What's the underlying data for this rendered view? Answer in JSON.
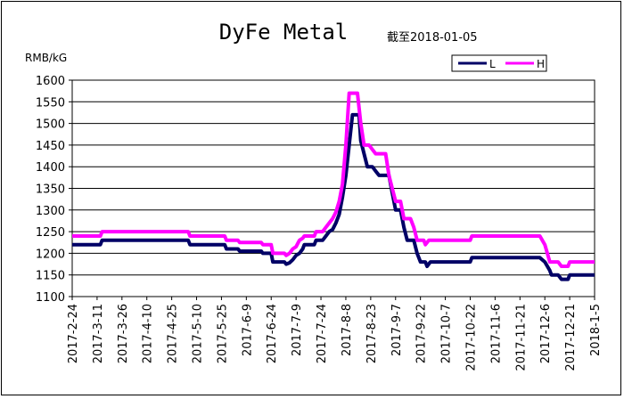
{
  "chart_data": {
    "type": "line",
    "title": "DyFe Metal",
    "subtitle": "截至2018-01-05",
    "ylabel": "RMB/kG",
    "xlabel": "",
    "ylim": [
      1100,
      1600
    ],
    "yticks": [
      1100,
      1150,
      1200,
      1250,
      1300,
      1350,
      1400,
      1450,
      1500,
      1550,
      1600
    ],
    "x_tick_labels": [
      "2017-2-24",
      "2017-3-11",
      "2017-3-26",
      "2017-4-10",
      "2017-4-25",
      "2017-5-10",
      "2017-5-25",
      "2017-6-9",
      "2017-6-24",
      "2017-7-9",
      "2017-7-24",
      "2017-8-8",
      "2017-8-23",
      "2017-9-7",
      "2017-9-22",
      "2017-10-7",
      "2017-10-22",
      "2017-11-6",
      "2017-11-21",
      "2017-12-6",
      "2017-12-21",
      "2018-1-5"
    ],
    "x_start": "2017-2-24",
    "x_end": "2018-1-5",
    "grid": "horizontal",
    "legend_position": "top-right",
    "colors": {
      "L": "#000066",
      "H": "#ff00ff"
    },
    "series": [
      {
        "name": "L",
        "points": [
          [
            "2017-02-24",
            1220
          ],
          [
            "2017-03-13",
            1220
          ],
          [
            "2017-03-14",
            1230
          ],
          [
            "2017-05-05",
            1230
          ],
          [
            "2017-05-06",
            1220
          ],
          [
            "2017-05-27",
            1220
          ],
          [
            "2017-05-28",
            1210
          ],
          [
            "2017-06-04",
            1210
          ],
          [
            "2017-06-05",
            1205
          ],
          [
            "2017-06-18",
            1205
          ],
          [
            "2017-06-19",
            1200
          ],
          [
            "2017-06-24",
            1200
          ],
          [
            "2017-06-25",
            1180
          ],
          [
            "2017-07-02",
            1180
          ],
          [
            "2017-07-03",
            1175
          ],
          [
            "2017-07-05",
            1178
          ],
          [
            "2017-07-07",
            1185
          ],
          [
            "2017-07-09",
            1195
          ],
          [
            "2017-07-11",
            1200
          ],
          [
            "2017-07-13",
            1210
          ],
          [
            "2017-07-14",
            1220
          ],
          [
            "2017-07-20",
            1220
          ],
          [
            "2017-07-21",
            1230
          ],
          [
            "2017-07-25",
            1230
          ],
          [
            "2017-07-27",
            1240
          ],
          [
            "2017-07-29",
            1250
          ],
          [
            "2017-07-31",
            1255
          ],
          [
            "2017-08-02",
            1270
          ],
          [
            "2017-08-04",
            1290
          ],
          [
            "2017-08-06",
            1330
          ],
          [
            "2017-08-08",
            1380
          ],
          [
            "2017-08-10",
            1450
          ],
          [
            "2017-08-12",
            1520
          ],
          [
            "2017-08-16",
            1520
          ],
          [
            "2017-08-17",
            1460
          ],
          [
            "2017-08-19",
            1430
          ],
          [
            "2017-08-21",
            1400
          ],
          [
            "2017-08-24",
            1400
          ],
          [
            "2017-08-26",
            1390
          ],
          [
            "2017-08-28",
            1380
          ],
          [
            "2017-09-03",
            1380
          ],
          [
            "2017-09-05",
            1340
          ],
          [
            "2017-09-07",
            1300
          ],
          [
            "2017-09-10",
            1300
          ],
          [
            "2017-09-12",
            1260
          ],
          [
            "2017-09-14",
            1230
          ],
          [
            "2017-09-18",
            1230
          ],
          [
            "2017-09-20",
            1200
          ],
          [
            "2017-09-22",
            1180
          ],
          [
            "2017-09-25",
            1180
          ],
          [
            "2017-09-26",
            1170
          ],
          [
            "2017-09-28",
            1180
          ],
          [
            "2017-10-22",
            1180
          ],
          [
            "2017-10-23",
            1190
          ],
          [
            "2017-12-03",
            1190
          ],
          [
            "2017-12-06",
            1180
          ],
          [
            "2017-12-09",
            1160
          ],
          [
            "2017-12-10",
            1150
          ],
          [
            "2017-12-14",
            1150
          ],
          [
            "2017-12-16",
            1140
          ],
          [
            "2017-12-20",
            1140
          ],
          [
            "2017-12-21",
            1150
          ],
          [
            "2018-01-05",
            1150
          ]
        ]
      },
      {
        "name": "H",
        "points": [
          [
            "2017-02-24",
            1240
          ],
          [
            "2017-03-13",
            1240
          ],
          [
            "2017-03-14",
            1250
          ],
          [
            "2017-05-05",
            1250
          ],
          [
            "2017-05-06",
            1240
          ],
          [
            "2017-05-27",
            1240
          ],
          [
            "2017-05-28",
            1230
          ],
          [
            "2017-06-04",
            1230
          ],
          [
            "2017-06-05",
            1225
          ],
          [
            "2017-06-18",
            1225
          ],
          [
            "2017-06-19",
            1220
          ],
          [
            "2017-06-24",
            1220
          ],
          [
            "2017-06-25",
            1200
          ],
          [
            "2017-07-02",
            1200
          ],
          [
            "2017-07-03",
            1195
          ],
          [
            "2017-07-05",
            1200
          ],
          [
            "2017-07-07",
            1210
          ],
          [
            "2017-07-09",
            1215
          ],
          [
            "2017-07-11",
            1230
          ],
          [
            "2017-07-13",
            1235
          ],
          [
            "2017-07-14",
            1240
          ],
          [
            "2017-07-20",
            1240
          ],
          [
            "2017-07-21",
            1250
          ],
          [
            "2017-07-25",
            1250
          ],
          [
            "2017-07-27",
            1260
          ],
          [
            "2017-07-29",
            1270
          ],
          [
            "2017-07-31",
            1280
          ],
          [
            "2017-08-02",
            1295
          ],
          [
            "2017-08-04",
            1320
          ],
          [
            "2017-08-06",
            1360
          ],
          [
            "2017-08-08",
            1450
          ],
          [
            "2017-08-10",
            1570
          ],
          [
            "2017-08-15",
            1570
          ],
          [
            "2017-08-17",
            1500
          ],
          [
            "2017-08-19",
            1450
          ],
          [
            "2017-08-22",
            1450
          ],
          [
            "2017-08-24",
            1440
          ],
          [
            "2017-08-26",
            1430
          ],
          [
            "2017-09-01",
            1430
          ],
          [
            "2017-09-03",
            1380
          ],
          [
            "2017-09-05",
            1350
          ],
          [
            "2017-09-07",
            1320
          ],
          [
            "2017-09-10",
            1320
          ],
          [
            "2017-09-12",
            1280
          ],
          [
            "2017-09-16",
            1280
          ],
          [
            "2017-09-18",
            1260
          ],
          [
            "2017-09-20",
            1230
          ],
          [
            "2017-09-24",
            1230
          ],
          [
            "2017-09-25",
            1220
          ],
          [
            "2017-09-27",
            1230
          ],
          [
            "2017-10-22",
            1230
          ],
          [
            "2017-10-23",
            1240
          ],
          [
            "2017-12-03",
            1240
          ],
          [
            "2017-12-06",
            1220
          ],
          [
            "2017-12-09",
            1180
          ],
          [
            "2017-12-14",
            1180
          ],
          [
            "2017-12-16",
            1170
          ],
          [
            "2017-12-20",
            1170
          ],
          [
            "2017-12-21",
            1180
          ],
          [
            "2018-01-05",
            1180
          ]
        ]
      }
    ]
  }
}
